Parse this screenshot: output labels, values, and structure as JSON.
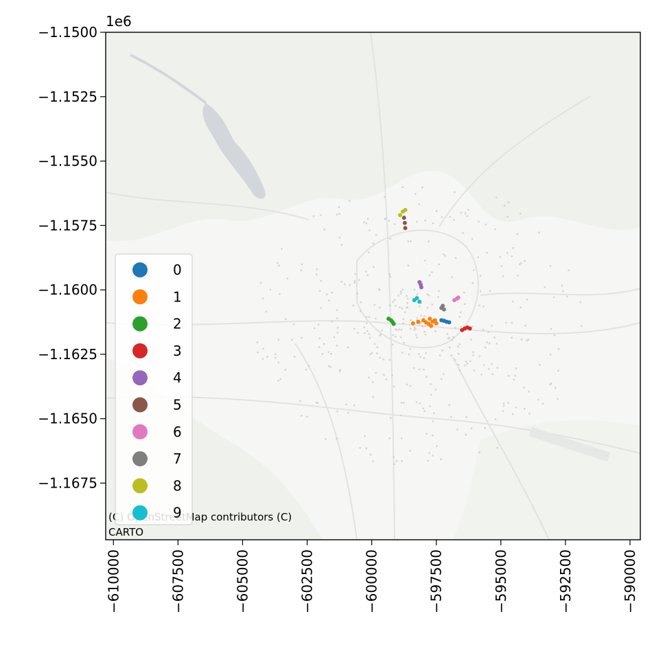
{
  "chart_data": {
    "type": "scatter",
    "title": "",
    "xlabel": "",
    "ylabel": "",
    "y_offset_label": "1e6",
    "xlim": [
      -610300,
      -589600
    ],
    "ylim": [
      -1.1697,
      -1.15
    ],
    "x_ticks": [
      -610000,
      -607500,
      -605000,
      -602500,
      -600000,
      -597500,
      -595000,
      -592500,
      -590000
    ],
    "x_tick_labels": [
      "−610000",
      "−607500",
      "−605000",
      "−602500",
      "−600000",
      "−597500",
      "−595000",
      "−592500",
      "−590000"
    ],
    "y_ticks": [
      -1.15,
      -1.1525,
      -1.155,
      -1.1575,
      -1.16,
      -1.1625,
      -1.165,
      -1.1675
    ],
    "y_tick_labels": [
      "−1.1500",
      "−1.1525",
      "−1.1550",
      "−1.1575",
      "−1.1600",
      "−1.1625",
      "−1.1650",
      "−1.1675"
    ],
    "grid": false,
    "legend_position": "lower-left",
    "attribution": "(C) OpenStreetMap contributors (C) CARTO",
    "background_points_color": "#c8c8c8",
    "series": [
      {
        "name": "0",
        "color": "#1f77b4",
        "points": [
          [
            -597300,
            -1.16118
          ],
          [
            -597200,
            -1.1612
          ],
          [
            -597100,
            -1.16124
          ],
          [
            -597000,
            -1.16126
          ]
        ]
      },
      {
        "name": "1",
        "color": "#ff7f0e",
        "points": [
          [
            -598400,
            -1.1613
          ],
          [
            -598200,
            -1.16124
          ],
          [
            -598000,
            -1.16118
          ],
          [
            -597900,
            -1.16126
          ],
          [
            -597800,
            -1.16132
          ],
          [
            -597700,
            -1.1614
          ],
          [
            -597650,
            -1.16124
          ],
          [
            -597550,
            -1.16118
          ],
          [
            -597500,
            -1.1613
          ],
          [
            -597750,
            -1.16112
          ]
        ]
      },
      {
        "name": "2",
        "color": "#2ca02c",
        "points": [
          [
            -599350,
            -1.16112
          ],
          [
            -599250,
            -1.16118
          ],
          [
            -599200,
            -1.16124
          ],
          [
            -599150,
            -1.16132
          ]
        ]
      },
      {
        "name": "3",
        "color": "#d62728",
        "points": [
          [
            -596500,
            -1.16156
          ],
          [
            -596400,
            -1.1615
          ],
          [
            -596300,
            -1.16146
          ],
          [
            -596200,
            -1.1615
          ]
        ]
      },
      {
        "name": "4",
        "color": "#9467bd",
        "points": [
          [
            -598150,
            -1.1597
          ],
          [
            -598100,
            -1.1598
          ],
          [
            -598080,
            -1.1599
          ]
        ]
      },
      {
        "name": "5",
        "color": "#8c564b",
        "points": [
          [
            -598750,
            -1.1572
          ],
          [
            -598720,
            -1.1574
          ],
          [
            -598700,
            -1.1576
          ]
        ]
      },
      {
        "name": "6",
        "color": "#e377c2",
        "points": [
          [
            -596800,
            -1.1604
          ],
          [
            -596700,
            -1.16034
          ],
          [
            -596650,
            -1.1603
          ]
        ]
      },
      {
        "name": "7",
        "color": "#7f7f7f",
        "points": [
          [
            -597300,
            -1.1607
          ],
          [
            -597250,
            -1.16062
          ],
          [
            -597200,
            -1.16076
          ]
        ]
      },
      {
        "name": "8",
        "color": "#bcbd22",
        "points": [
          [
            -598900,
            -1.1571
          ],
          [
            -598800,
            -1.15696
          ],
          [
            -598700,
            -1.1569
          ]
        ]
      },
      {
        "name": "9",
        "color": "#17becf",
        "points": [
          [
            -598350,
            -1.1604
          ],
          [
            -598250,
            -1.16032
          ],
          [
            -598150,
            -1.16046
          ]
        ]
      }
    ]
  }
}
